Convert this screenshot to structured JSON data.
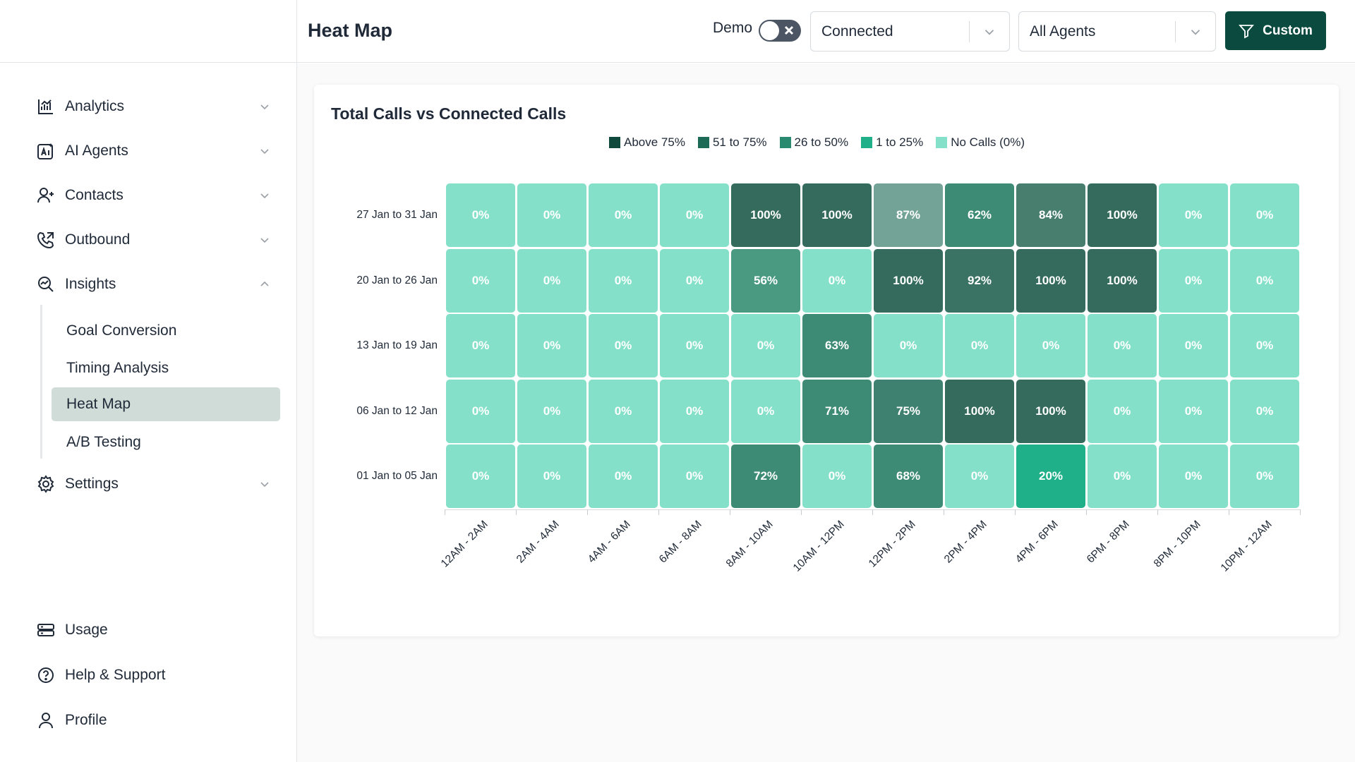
{
  "sidebar": {
    "items": [
      {
        "label": "Analytics",
        "icon": "chart-icon",
        "expanded": false
      },
      {
        "label": "AI Agents",
        "icon": "ai-agents-icon",
        "expanded": false
      },
      {
        "label": "Contacts",
        "icon": "add-contact-icon",
        "expanded": false
      },
      {
        "label": "Outbound",
        "icon": "phone-outbound-icon",
        "expanded": false
      },
      {
        "label": "Insights",
        "icon": "insights-icon",
        "expanded": true
      },
      {
        "label": "Settings",
        "icon": "gear-icon",
        "expanded": false
      }
    ],
    "insights_children": [
      "Goal Conversion",
      "Timing Analysis",
      "Heat Map",
      "A/B Testing"
    ],
    "active_child": "Heat Map",
    "bottom_items": [
      {
        "label": "Usage",
        "icon": "usage-icon"
      },
      {
        "label": "Help & Support",
        "icon": "help-icon"
      },
      {
        "label": "Profile",
        "icon": "user-icon"
      }
    ]
  },
  "header": {
    "title": "Heat Map",
    "demo_label": "Demo",
    "demo_on": false,
    "status_select": "Connected",
    "agent_select": "All Agents",
    "custom_button": "Custom"
  },
  "card": {
    "title": "Total Calls vs Connected Calls"
  },
  "colors": {
    "brand": "#0b4a3f",
    "above_75": "#0f4a3d",
    "51_to_75": "#1d6a57",
    "26_to_50": "#2a8a6f",
    "1_to_25": "#1fb08a",
    "no_calls": "#84e0c8"
  },
  "chart_data": {
    "type": "heatmap",
    "title": "Total Calls vs Connected Calls",
    "legend": [
      "Above 75%",
      "51 to 75%",
      "26 to 50%",
      "1 to 25%",
      "No Calls (0%)"
    ],
    "legend_position": "top-center",
    "x": [
      "12AM - 2AM",
      "2AM - 4AM",
      "4AM - 6AM",
      "6AM - 8AM",
      "8AM - 10AM",
      "10AM - 12PM",
      "12PM - 2PM",
      "2PM - 4PM",
      "4PM - 6PM",
      "6PM - 8PM",
      "8PM - 10PM",
      "10PM - 12AM"
    ],
    "y": [
      "27 Jan to 31 Jan",
      "20 Jan to 26 Jan",
      "13 Jan to 19 Jan",
      "06 Jan to 12 Jan",
      "01 Jan to 05 Jan"
    ],
    "values": [
      [
        0,
        0,
        0,
        0,
        100,
        100,
        87,
        62,
        84,
        100,
        0,
        0
      ],
      [
        0,
        0,
        0,
        0,
        56,
        0,
        100,
        92,
        100,
        100,
        0,
        0
      ],
      [
        0,
        0,
        0,
        0,
        0,
        63,
        0,
        0,
        0,
        0,
        0,
        0
      ],
      [
        0,
        0,
        0,
        0,
        0,
        71,
        75,
        100,
        100,
        0,
        0,
        0
      ],
      [
        0,
        0,
        0,
        0,
        72,
        0,
        68,
        0,
        20,
        0,
        0,
        0
      ]
    ],
    "unit": "%"
  }
}
